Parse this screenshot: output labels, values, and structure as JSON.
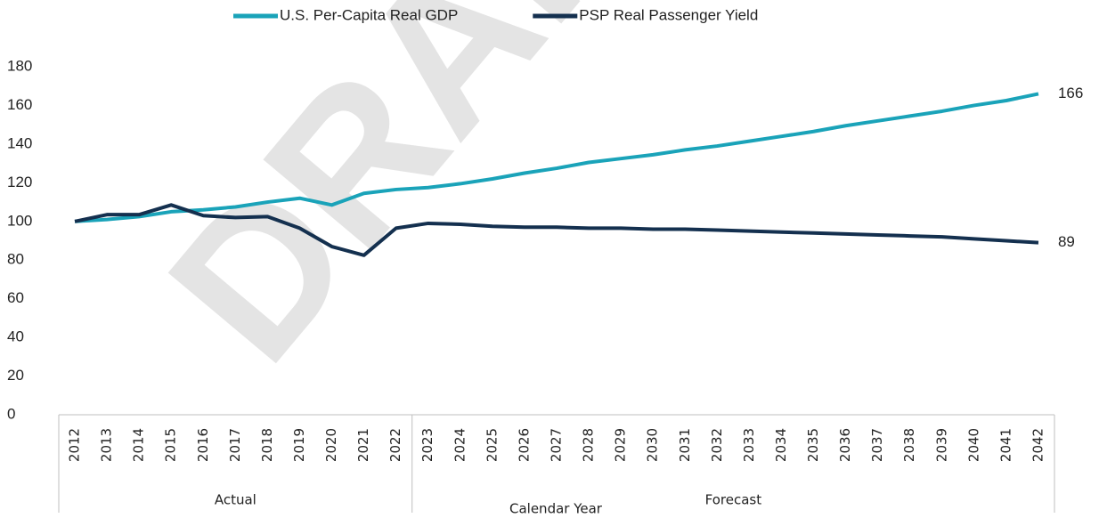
{
  "chart_data": {
    "type": "line",
    "watermark": "DRAFT",
    "x_axis_label": "Calendar Year",
    "categories": [
      "2012",
      "2013",
      "2014",
      "2015",
      "2016",
      "2017",
      "2018",
      "2019",
      "2020",
      "2021",
      "2022",
      "2023",
      "2024",
      "2025",
      "2026",
      "2027",
      "2028",
      "2029",
      "2030",
      "2031",
      "2032",
      "2033",
      "2034",
      "2035",
      "2036",
      "2037",
      "2038",
      "2039",
      "2040",
      "2041",
      "2042"
    ],
    "groups": [
      {
        "label": "Actual",
        "from": "2012",
        "to": "2022"
      },
      {
        "label": "Forecast",
        "from": "2023",
        "to": "2042"
      }
    ],
    "series": [
      {
        "name": "U.S. Per-Capita Real GDP",
        "color": "#1aa3b9",
        "values": [
          100,
          101,
          102.5,
          105,
          106,
          107.5,
          110,
          112,
          108.5,
          114.5,
          116.5,
          117.5,
          119.5,
          122,
          125,
          127.5,
          130.5,
          132.5,
          134.5,
          137,
          139,
          141.5,
          144,
          146.5,
          149.5,
          152,
          154.5,
          157,
          160,
          162.5,
          166
        ]
      },
      {
        "name": "PSP Real Passenger Yield",
        "color": "#14304f",
        "values": [
          100,
          103.5,
          103.5,
          108.5,
          103,
          102,
          102.5,
          96.5,
          87,
          82.5,
          96.5,
          99,
          98.5,
          97.5,
          97,
          97,
          96.5,
          96.5,
          96,
          96,
          95.5,
          95,
          94.5,
          94,
          93.5,
          93,
          92.5,
          92,
          91,
          90,
          89
        ]
      }
    ],
    "ylim": [
      0,
      180
    ],
    "yticks": [
      0,
      20,
      40,
      60,
      80,
      100,
      120,
      140,
      160,
      180
    ],
    "grid": false,
    "legend": "top"
  }
}
